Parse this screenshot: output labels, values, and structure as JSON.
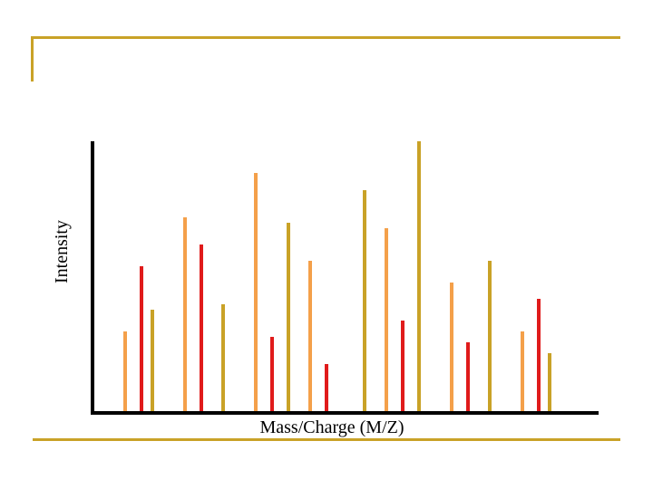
{
  "slide": {
    "frame_color": "#C9A227"
  },
  "chart_data": {
    "type": "bar",
    "title": "",
    "xlabel": "Mass/Charge (M/Z)",
    "ylabel": "Intensity",
    "ylim": [
      0,
      300
    ],
    "xlim": [
      0,
      556
    ],
    "grid": false,
    "legend": "none",
    "series_colors": {
      "orange": "#F4A04A",
      "red": "#E01B1B",
      "gold": "#C9A227"
    },
    "peaks": [
      {
        "x": 36,
        "y": 90,
        "color": "orange"
      },
      {
        "x": 54,
        "y": 162,
        "color": "red"
      },
      {
        "x": 66,
        "y": 114,
        "color": "gold"
      },
      {
        "x": 102,
        "y": 216,
        "color": "orange"
      },
      {
        "x": 120,
        "y": 186,
        "color": "red"
      },
      {
        "x": 144,
        "y": 120,
        "color": "gold"
      },
      {
        "x": 180,
        "y": 265,
        "color": "orange"
      },
      {
        "x": 198,
        "y": 84,
        "color": "red"
      },
      {
        "x": 216,
        "y": 210,
        "color": "gold"
      },
      {
        "x": 240,
        "y": 168,
        "color": "orange"
      },
      {
        "x": 258,
        "y": 54,
        "color": "red"
      },
      {
        "x": 300,
        "y": 246,
        "color": "gold"
      },
      {
        "x": 324,
        "y": 204,
        "color": "orange"
      },
      {
        "x": 342,
        "y": 102,
        "color": "red"
      },
      {
        "x": 360,
        "y": 300,
        "color": "gold"
      },
      {
        "x": 396,
        "y": 144,
        "color": "orange"
      },
      {
        "x": 414,
        "y": 78,
        "color": "red"
      },
      {
        "x": 438,
        "y": 168,
        "color": "gold"
      },
      {
        "x": 474,
        "y": 90,
        "color": "orange"
      },
      {
        "x": 492,
        "y": 126,
        "color": "red"
      },
      {
        "x": 504,
        "y": 66,
        "color": "gold"
      }
    ]
  }
}
